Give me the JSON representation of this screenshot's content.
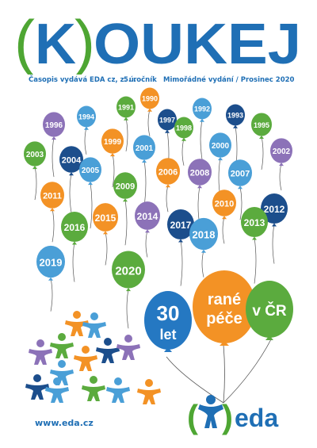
{
  "masthead": {
    "open_paren": "(",
    "letter_k": "K",
    "close_paren": ")",
    "rest": "OUKEJ",
    "colors": {
      "blue": "#1f6fb5",
      "green": "#4ea633"
    }
  },
  "subline": {
    "publisher": "Časopis vydává EDA cz, z. ú.",
    "volume": "5. ročník",
    "edition": "Mimořádné vydání / Prosinec 2020"
  },
  "year_balloons": [
    {
      "year": "1990",
      "color": "#f39225"
    },
    {
      "year": "1991",
      "color": "#5bab3e"
    },
    {
      "year": "1992",
      "color": "#4a9fd7"
    },
    {
      "year": "1993",
      "color": "#1c4e8c"
    },
    {
      "year": "1994",
      "color": "#4a9fd7"
    },
    {
      "year": "1995",
      "color": "#5bab3e"
    },
    {
      "year": "1996",
      "color": "#8c72b8"
    },
    {
      "year": "1997",
      "color": "#1c4e8c"
    },
    {
      "year": "1998",
      "color": "#5bab3e"
    },
    {
      "year": "1999",
      "color": "#f39225"
    },
    {
      "year": "2000",
      "color": "#4a9fd7"
    },
    {
      "year": "2001",
      "color": "#4a9fd7"
    },
    {
      "year": "2002",
      "color": "#8c72b8"
    },
    {
      "year": "2003",
      "color": "#5bab3e"
    },
    {
      "year": "2004",
      "color": "#1c4e8c"
    },
    {
      "year": "2005",
      "color": "#4a9fd7"
    },
    {
      "year": "2006",
      "color": "#f39225"
    },
    {
      "year": "2007",
      "color": "#4a9fd7"
    },
    {
      "year": "2008",
      "color": "#8c72b8"
    },
    {
      "year": "2009",
      "color": "#5bab3e"
    },
    {
      "year": "2010",
      "color": "#f39225"
    },
    {
      "year": "2011",
      "color": "#f39225"
    },
    {
      "year": "2012",
      "color": "#1c4e8c"
    },
    {
      "year": "2013",
      "color": "#5bab3e"
    },
    {
      "year": "2014",
      "color": "#8c72b8"
    },
    {
      "year": "2015",
      "color": "#f39225"
    },
    {
      "year": "2016",
      "color": "#5bab3e"
    },
    {
      "year": "2017",
      "color": "#1c4e8c"
    },
    {
      "year": "2018",
      "color": "#4a9fd7"
    },
    {
      "year": "2019",
      "color": "#4a9fd7"
    },
    {
      "year": "2020",
      "color": "#5bab3e"
    }
  ],
  "anniversary": {
    "left_line1": "30",
    "left_line2": "let",
    "middle_line1": "rané",
    "middle_line2": "péče",
    "right_text": "v ČR",
    "colors": {
      "left": "#2578c2",
      "middle": "#f39225",
      "right": "#5bab3e"
    }
  },
  "logo": {
    "open_paren": "(",
    "close_paren": ")",
    "word": "eda",
    "colors": {
      "paren": "#4ea633",
      "figure": "#1f6fb5",
      "word": "#1f6fb5"
    }
  },
  "people_colors": [
    "#f39225",
    "#4a9fd7",
    "#8c72b8",
    "#5bab3e",
    "#1c4e8c"
  ],
  "website": "www.eda.cz"
}
